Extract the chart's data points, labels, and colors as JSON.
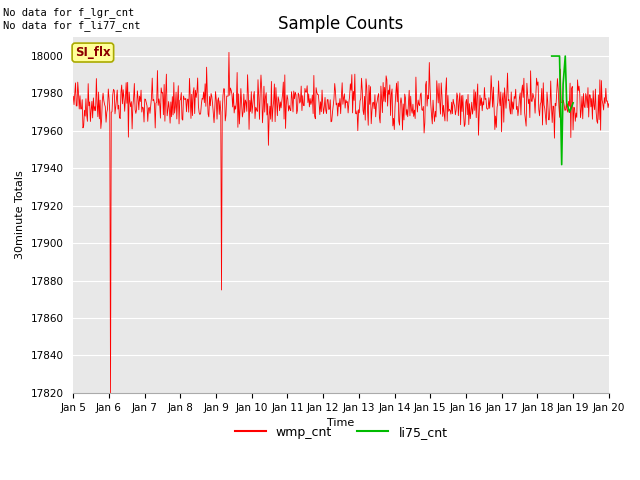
{
  "title": "Sample Counts",
  "ylabel": "30minute Totals",
  "xlabel": "Time",
  "no_data_text_1": "No data for f_lgr_cnt",
  "no_data_text_2": "No data for f_li77_cnt",
  "si_flx_label": "SI_flx",
  "ylim": [
    17820,
    18010
  ],
  "yticks": [
    17820,
    17840,
    17860,
    17880,
    17900,
    17920,
    17940,
    17960,
    17980,
    18000
  ],
  "xtick_labels": [
    "Jan 5",
    "Jan 6",
    "Jan 7",
    "Jan 8",
    "Jan 9",
    "Jan 10",
    "Jan 11",
    "Jan 12",
    "Jan 13",
    "Jan 14",
    "Jan 15",
    "Jan 16",
    "Jan 17",
    "Jan 18",
    "Jan 19",
    "Jan 20"
  ],
  "wmp_color": "#ff0000",
  "li75_color": "#00bb00",
  "wmp_base": 17975,
  "wmp_noise": 7,
  "plot_bg_color": "#e8e8e8",
  "grid_color": "#ffffff",
  "legend_wmp": "wmp_cnt",
  "legend_li75": "li75_cnt",
  "title_fontsize": 12,
  "label_fontsize": 8,
  "tick_fontsize": 7.5
}
